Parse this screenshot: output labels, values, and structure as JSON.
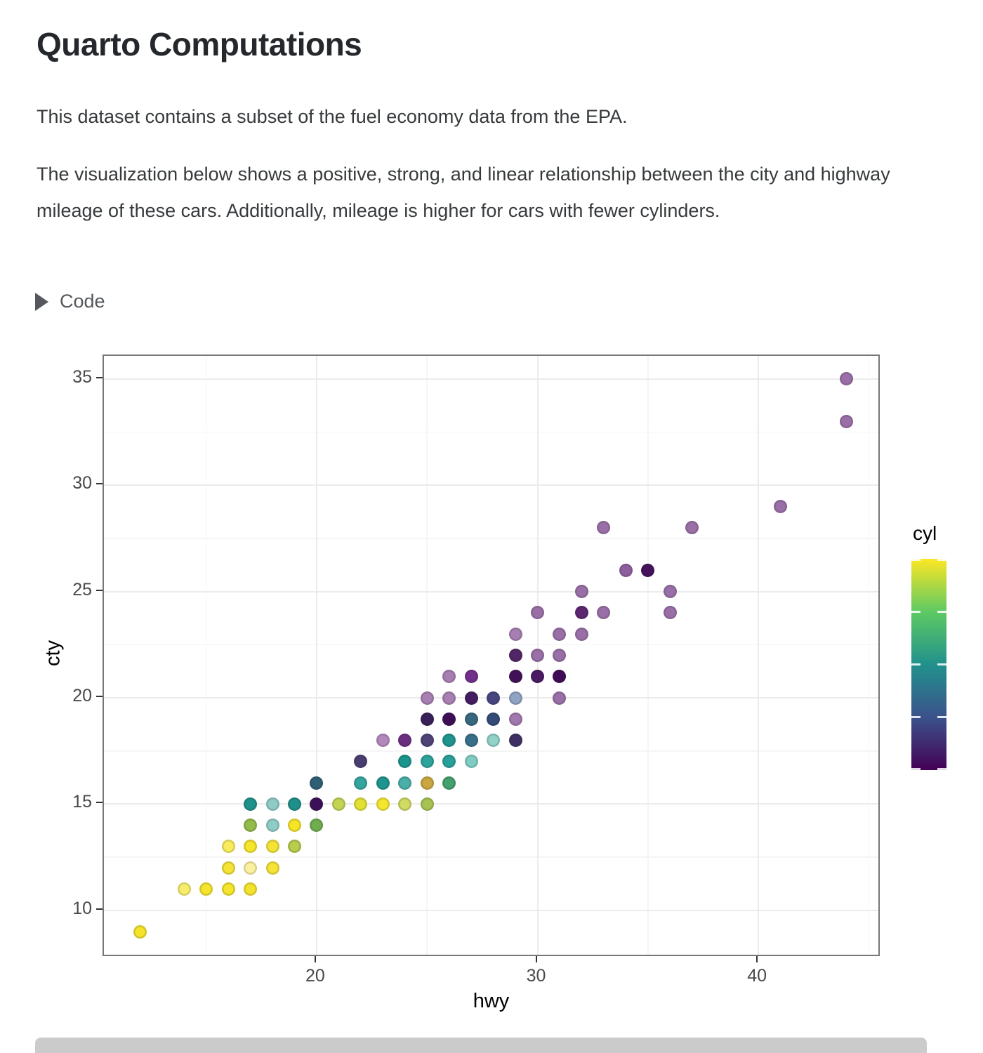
{
  "page": {
    "title": "Quarto Computations",
    "paragraph1": "This dataset contains a subset of the fuel economy data from the EPA.",
    "paragraph2": "The visualization below shows a positive, strong, and linear relationship between the city and highway mileage of these cars. Additionally, mileage is higher for cars with fewer cylinders.",
    "code_toggle_label": "Code"
  },
  "chart_data": {
    "type": "scatter",
    "xlabel": "hwy",
    "ylabel": "cty",
    "xlim": [
      10.37,
      45.56
    ],
    "ylim": [
      7.78,
      36.09
    ],
    "x_major_ticks": [
      20,
      30,
      40
    ],
    "x_minor_gridlines": [
      15,
      25,
      35,
      45
    ],
    "y_major_ticks": [
      10,
      15,
      20,
      25,
      30,
      35
    ],
    "y_minor_gridlines": [
      12.5,
      17.5,
      22.5,
      27.5,
      32.5
    ],
    "grid": "on",
    "legend": {
      "title": "cyl",
      "position": "right",
      "min": 4,
      "max": 8,
      "tick_values": [
        4,
        5,
        6,
        7,
        8
      ],
      "gradient_top_to_bottom": [
        "#fde725",
        "#5ec962",
        "#21918c",
        "#3b528b",
        "#440154"
      ]
    },
    "points": [
      {
        "hwy": 12,
        "cty": 9,
        "cyl_est": 8,
        "color": "#f5e32b"
      },
      {
        "hwy": 14,
        "cty": 11,
        "cyl_est": 8,
        "color": "#f8ed6b"
      },
      {
        "hwy": 15,
        "cty": 11,
        "cyl_est": 8,
        "color": "#f4e42c"
      },
      {
        "hwy": 16,
        "cty": 11,
        "cyl_est": 8,
        "color": "#f4e42c"
      },
      {
        "hwy": 17,
        "cty": 11,
        "cyl_est": 8,
        "color": "#f3e32e"
      },
      {
        "hwy": 16,
        "cty": 12,
        "cyl_est": 8,
        "color": "#f5e335"
      },
      {
        "hwy": 17,
        "cty": 12,
        "cyl_est": 8,
        "color": "#faf0a0"
      },
      {
        "hwy": 18,
        "cty": 12,
        "cyl_est": 8,
        "color": "#f5e335"
      },
      {
        "hwy": 16,
        "cty": 13,
        "cyl_est": 8,
        "color": "#f8ec5c"
      },
      {
        "hwy": 17,
        "cty": 13,
        "cyl_est": 8,
        "color": "#f5e52b"
      },
      {
        "hwy": 18,
        "cty": 13,
        "cyl_est": 8,
        "color": "#f4e335"
      },
      {
        "hwy": 19,
        "cty": 13,
        "cyl_est": 7,
        "color": "#b8cc4e"
      },
      {
        "hwy": 17,
        "cty": 14,
        "cyl_est": 7,
        "color": "#93bb49"
      },
      {
        "hwy": 18,
        "cty": 14,
        "cyl_est": 6,
        "color": "#8fccc6"
      },
      {
        "hwy": 19,
        "cty": 14,
        "cyl_est": 8,
        "color": "#f6e426"
      },
      {
        "hwy": 20,
        "cty": 14,
        "cyl_est": 7,
        "color": "#70ad4f"
      },
      {
        "hwy": 17,
        "cty": 15,
        "cyl_est": 6,
        "color": "#21918c"
      },
      {
        "hwy": 18,
        "cty": 15,
        "cyl_est": 6,
        "color": "#8ecac6"
      },
      {
        "hwy": 19,
        "cty": 15,
        "cyl_est": 6,
        "color": "#1f8f89"
      },
      {
        "hwy": 20,
        "cty": 15,
        "cyl_est": 4,
        "color": "#3c0f59"
      },
      {
        "hwy": 21,
        "cty": 15,
        "cyl_est": 7,
        "color": "#c3d455"
      },
      {
        "hwy": 22,
        "cty": 15,
        "cyl_est": 8,
        "color": "#e3e034"
      },
      {
        "hwy": 23,
        "cty": 15,
        "cyl_est": 8,
        "color": "#f4e62e"
      },
      {
        "hwy": 24,
        "cty": 15,
        "cyl_est": 7,
        "color": "#cfdb62"
      },
      {
        "hwy": 25,
        "cty": 15,
        "cyl_est": 7,
        "color": "#a8c352"
      },
      {
        "hwy": 20,
        "cty": 16,
        "cyl_est": 5,
        "color": "#2e5f74"
      },
      {
        "hwy": 22,
        "cty": 16,
        "cyl_est": 6,
        "color": "#35a5a0"
      },
      {
        "hwy": 23,
        "cty": 16,
        "cyl_est": 6,
        "color": "#1f948e"
      },
      {
        "hwy": 24,
        "cty": 16,
        "cyl_est": 6,
        "color": "#4aafa9"
      },
      {
        "hwy": 25,
        "cty": 16,
        "cyl_est": 7,
        "color": "#c9a63f"
      },
      {
        "hwy": 26,
        "cty": 16,
        "cyl_est": 7,
        "color": "#44a06c"
      },
      {
        "hwy": 22,
        "cty": 17,
        "cyl_est": 5,
        "color": "#4a3d70"
      },
      {
        "hwy": 24,
        "cty": 17,
        "cyl_est": 6,
        "color": "#1b948d"
      },
      {
        "hwy": 25,
        "cty": 17,
        "cyl_est": 6,
        "color": "#2da39b"
      },
      {
        "hwy": 26,
        "cty": 17,
        "cyl_est": 6,
        "color": "#27a09a"
      },
      {
        "hwy": 27,
        "cty": 17,
        "cyl_est": 6,
        "color": "#7fccc3"
      },
      {
        "hwy": 23,
        "cty": 18,
        "cyl_est": 4,
        "color": "#b288bd"
      },
      {
        "hwy": 24,
        "cty": 18,
        "cyl_est": 4,
        "color": "#6b2f80"
      },
      {
        "hwy": 25,
        "cty": 18,
        "cyl_est": 5,
        "color": "#4f4376"
      },
      {
        "hwy": 26,
        "cty": 18,
        "cyl_est": 6,
        "color": "#1e948d"
      },
      {
        "hwy": 27,
        "cty": 18,
        "cyl_est": 5,
        "color": "#38708a"
      },
      {
        "hwy": 28,
        "cty": 18,
        "cyl_est": 6,
        "color": "#90d1c8"
      },
      {
        "hwy": 29,
        "cty": 18,
        "cyl_est": 5,
        "color": "#3f3064"
      },
      {
        "hwy": 25,
        "cty": 19,
        "cyl_est": 4,
        "color": "#382058"
      },
      {
        "hwy": 26,
        "cty": 19,
        "cyl_est": 4,
        "color": "#400d57"
      },
      {
        "hwy": 27,
        "cty": 19,
        "cyl_est": 5,
        "color": "#39677f"
      },
      {
        "hwy": 28,
        "cty": 19,
        "cyl_est": 5,
        "color": "#324b78"
      },
      {
        "hwy": 29,
        "cty": 19,
        "cyl_est": 4,
        "color": "#a179ae"
      },
      {
        "hwy": 25,
        "cty": 20,
        "cyl_est": 4,
        "color": "#a77fb2"
      },
      {
        "hwy": 26,
        "cty": 20,
        "cyl_est": 4,
        "color": "#a77fb2"
      },
      {
        "hwy": 27,
        "cty": 20,
        "cyl_est": 4,
        "color": "#441c61"
      },
      {
        "hwy": 28,
        "cty": 20,
        "cyl_est": 5,
        "color": "#47457f"
      },
      {
        "hwy": 29,
        "cty": 20,
        "cyl_est": 5,
        "color": "#8fa3c5"
      },
      {
        "hwy": 31,
        "cty": 20,
        "cyl_est": 4,
        "color": "#9a6fa8"
      },
      {
        "hwy": 26,
        "cty": 21,
        "cyl_est": 4,
        "color": "#a77fb2"
      },
      {
        "hwy": 27,
        "cty": 21,
        "cyl_est": 4,
        "color": "#72308a"
      },
      {
        "hwy": 29,
        "cty": 21,
        "cyl_est": 4,
        "color": "#421058"
      },
      {
        "hwy": 30,
        "cty": 21,
        "cyl_est": 4,
        "color": "#4a1a63"
      },
      {
        "hwy": 31,
        "cty": 21,
        "cyl_est": 4,
        "color": "#400b57"
      },
      {
        "hwy": 29,
        "cty": 22,
        "cyl_est": 4,
        "color": "#512566"
      },
      {
        "hwy": 30,
        "cty": 22,
        "cyl_est": 4,
        "color": "#9a6fa8"
      },
      {
        "hwy": 31,
        "cty": 22,
        "cyl_est": 4,
        "color": "#9a6fa8"
      },
      {
        "hwy": 29,
        "cty": 23,
        "cyl_est": 4,
        "color": "#a77fb2"
      },
      {
        "hwy": 31,
        "cty": 23,
        "cyl_est": 4,
        "color": "#9a6fa8"
      },
      {
        "hwy": 32,
        "cty": 23,
        "cyl_est": 4,
        "color": "#9a6fa8"
      },
      {
        "hwy": 30,
        "cty": 24,
        "cyl_est": 4,
        "color": "#9a6fa8"
      },
      {
        "hwy": 32,
        "cty": 24,
        "cyl_est": 4,
        "color": "#5c2570"
      },
      {
        "hwy": 33,
        "cty": 24,
        "cyl_est": 4,
        "color": "#9a6fa8"
      },
      {
        "hwy": 36,
        "cty": 24,
        "cyl_est": 4,
        "color": "#9a6fa8"
      },
      {
        "hwy": 32,
        "cty": 25,
        "cyl_est": 4,
        "color": "#9a6fa8"
      },
      {
        "hwy": 36,
        "cty": 25,
        "cyl_est": 4,
        "color": "#9a6fa8"
      },
      {
        "hwy": 34,
        "cty": 26,
        "cyl_est": 4,
        "color": "#8e5f9e"
      },
      {
        "hwy": 35,
        "cty": 26,
        "cyl_est": 4,
        "color": "#45115a"
      },
      {
        "hwy": 33,
        "cty": 28,
        "cyl_est": 4,
        "color": "#9a6fa8"
      },
      {
        "hwy": 37,
        "cty": 28,
        "cyl_est": 4,
        "color": "#9a6fa8"
      },
      {
        "hwy": 41,
        "cty": 29,
        "cyl_est": 4,
        "color": "#9a6fa8"
      },
      {
        "hwy": 44,
        "cty": 33,
        "cyl_est": 4,
        "color": "#9a6fa8"
      },
      {
        "hwy": 44,
        "cty": 35,
        "cyl_est": 4,
        "color": "#9a6fa8"
      }
    ]
  }
}
